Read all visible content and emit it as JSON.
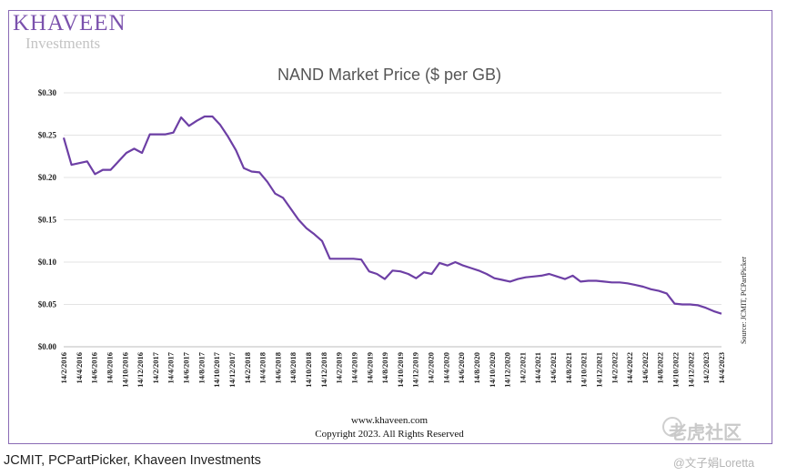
{
  "logo": {
    "brand": "KHAVEEN",
    "sub": "Investments"
  },
  "footer": {
    "site": "www.khaveen.com",
    "copyright": "Copyright 2023. All Rights Reserved"
  },
  "caption": "JCMIT, PCPartPicker, Khaveen Investments",
  "watermark": {
    "main": "老虎社区",
    "sub": "@文子娟Loretta"
  },
  "colors": {
    "line": "#6d3fa5",
    "frame": "#8a6bb5",
    "grid": "#e3e3e3"
  },
  "chart_data": {
    "type": "line",
    "title": "NAND Market Price ($ per GB)",
    "source_note": "Source: JCMIT, PCPartPicker",
    "ylim": [
      0,
      0.3
    ],
    "y_ticks": [
      "$0.00",
      "$0.05",
      "$0.10",
      "$0.15",
      "$0.20",
      "$0.25",
      "$0.30"
    ],
    "x_tick_labels": [
      "14/2/2016",
      "14/4/2016",
      "14/6/2016",
      "14/8/2016",
      "14/10/2016",
      "14/12/2016",
      "14/2/2017",
      "14/4/2017",
      "14/6/2017",
      "14/8/2017",
      "14/10/2017",
      "14/12/2017",
      "14/2/2018",
      "14/4/2018",
      "14/6/2018",
      "14/8/2018",
      "14/10/2018",
      "14/12/2018",
      "14/2/2019",
      "14/4/2019",
      "14/6/2019",
      "14/8/2019",
      "14/10/2019",
      "14/12/2019",
      "14/2/2020",
      "14/4/2020",
      "14/6/2020",
      "14/8/2020",
      "14/10/2020",
      "14/12/2020",
      "14/2/2021",
      "14/4/2021",
      "14/6/2021",
      "14/8/2021",
      "14/10/2021",
      "14/12/2021",
      "14/2/2022",
      "14/4/2022",
      "14/6/2022",
      "14/8/2022",
      "14/10/2022",
      "14/12/2022",
      "14/2/2023",
      "14/4/2023"
    ],
    "grid": true,
    "series": [
      {
        "values": [
          0.247,
          0.215,
          0.217,
          0.219,
          0.204,
          0.209,
          0.209,
          0.219,
          0.229,
          0.234,
          0.229,
          0.251,
          0.251,
          0.251,
          0.253,
          0.271,
          0.261,
          0.267,
          0.272,
          0.272,
          0.262,
          0.248,
          0.232,
          0.211,
          0.207,
          0.206,
          0.195,
          0.181,
          0.176,
          0.163,
          0.15,
          0.14,
          0.133,
          0.125,
          0.104,
          0.104,
          0.104,
          0.104,
          0.103,
          0.089,
          0.086,
          0.08,
          0.09,
          0.089,
          0.086,
          0.081,
          0.088,
          0.086,
          0.099,
          0.096,
          0.1,
          0.096,
          0.093,
          0.09,
          0.086,
          0.081,
          0.079,
          0.077,
          0.08,
          0.082,
          0.083,
          0.084,
          0.086,
          0.083,
          0.08,
          0.084,
          0.077,
          0.078,
          0.078,
          0.077,
          0.076,
          0.076,
          0.075,
          0.073,
          0.071,
          0.068,
          0.066,
          0.063,
          0.051,
          0.05,
          0.05,
          0.049,
          0.046,
          0.042,
          0.039
        ]
      }
    ]
  }
}
